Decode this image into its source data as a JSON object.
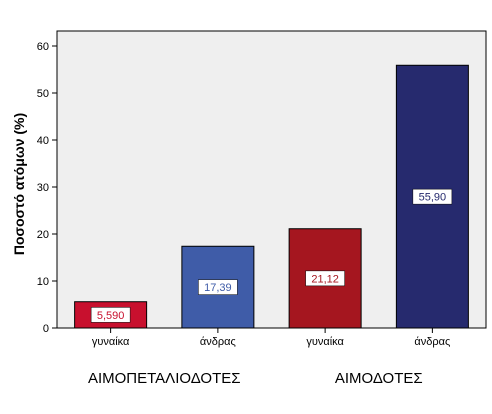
{
  "chart_data": {
    "type": "bar",
    "ylabel": "Ποσοστό ατόμων (%)",
    "xlabel": "",
    "ylim": [
      0,
      60
    ],
    "yticks": [
      0,
      10,
      20,
      30,
      40,
      50,
      60
    ],
    "grid": false,
    "plot_background": "#efefef",
    "bars": [
      {
        "group": "ΑΙΜΟΠΕΤΑΛΙΟΔΟΤΕΣ",
        "category": "γυναίκα",
        "value": 5.59,
        "label": "5,590",
        "color": "#c8102e",
        "label_color": "#c8102e"
      },
      {
        "group": "ΑΙΜΟΠΕΤΑΛΙΟΔΟΤΕΣ",
        "category": "άνδρας",
        "value": 17.39,
        "label": "17,39",
        "color": "#3f5ca8",
        "label_color": "#3f5ca8"
      },
      {
        "group": "ΑΙΜΟΔΟΤΕΣ",
        "category": "γυναίκα",
        "value": 21.12,
        "label": "21,12",
        "color": "#a5161f",
        "label_color": "#a5161f"
      },
      {
        "group": "ΑΙΜΟΔΟΤΕΣ",
        "category": "άνδρας",
        "value": 55.9,
        "label": "55,90",
        "color": "#262a6e",
        "label_color": "#262a6e"
      }
    ],
    "groups": [
      "ΑΙΜΟΠΕΤΑΛΙΟΔΟΤΕΣ",
      "ΑΙΜΟΔΟΤΕΣ"
    ]
  }
}
